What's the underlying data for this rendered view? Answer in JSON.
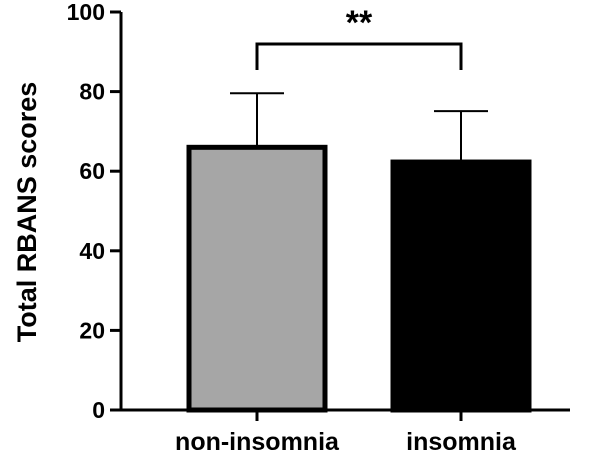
{
  "chart_data": {
    "type": "bar",
    "title": "",
    "xlabel": "",
    "ylabel": "Total RBANS scores",
    "ylim": [
      0,
      100
    ],
    "yticks": [
      0,
      20,
      40,
      60,
      80,
      100
    ],
    "categories": [
      "non-insomnia",
      "insomnia"
    ],
    "values": [
      66,
      62.3
    ],
    "error_upper": [
      79.6,
      75.1
    ],
    "bar_colors": [
      "#a6a6a6",
      "#000000"
    ],
    "significance": {
      "label": "**",
      "between": [
        "non-insomnia",
        "insomnia"
      ]
    },
    "grid": false,
    "legend": "none"
  }
}
